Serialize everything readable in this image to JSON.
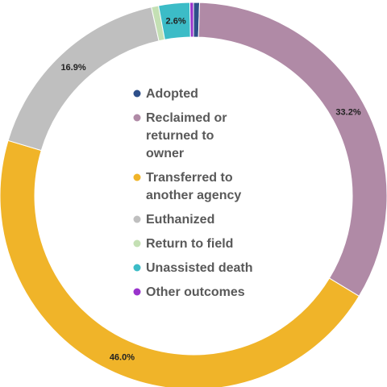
{
  "chart_data": {
    "type": "pie",
    "variant": "donut",
    "title": "",
    "legend_position": "center",
    "series": [
      {
        "name": "Adopted",
        "value": 0.5,
        "color": "#2e4f8a",
        "label": ""
      },
      {
        "name": "Reclaimed or returned to owner",
        "legend_lines": [
          "Reclaimed or",
          "returned to",
          "owner"
        ],
        "value": 33.2,
        "color": "#b08aa6",
        "label": "33.2%"
      },
      {
        "name": "Transferred to another agency",
        "legend_lines": [
          "Transferred to",
          "another agency"
        ],
        "value": 46.0,
        "color": "#f0b429",
        "label": "46.0%"
      },
      {
        "name": "Euthanized",
        "value": 16.9,
        "color": "#bfbfbf",
        "label": "16.9%"
      },
      {
        "name": "Return to field",
        "value": 0.6,
        "color": "#c4e0b4",
        "label": ""
      },
      {
        "name": "Unassisted death",
        "value": 2.6,
        "color": "#3cbcc7",
        "label": "2.6%"
      },
      {
        "name": "Other outcomes",
        "value": 0.3,
        "color": "#9933cc",
        "label": ""
      }
    ]
  }
}
